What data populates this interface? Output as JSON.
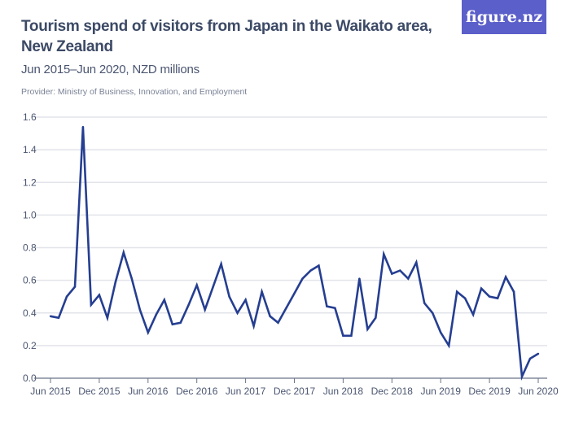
{
  "logo": "figure.nz",
  "chart_data": {
    "type": "line",
    "title": "Tourism spend of visitors from Japan in the Waikato area, New Zealand",
    "subtitle": "Jun 2015–Jun 2020, NZD millions",
    "provider": "Provider: Ministry of Business, Innovation, and Employment",
    "xlabel": "",
    "ylabel": "",
    "ylim": [
      0,
      1.6
    ],
    "yticks": [
      "0.0",
      "0.2",
      "0.4",
      "0.6",
      "0.8",
      "1.0",
      "1.2",
      "1.4",
      "1.6"
    ],
    "xticks": [
      "Jun 2015",
      "Dec 2015",
      "Jun 2016",
      "Dec 2016",
      "Jun 2017",
      "Dec 2017",
      "Jun 2018",
      "Dec 2018",
      "Jun 2019",
      "Dec 2019",
      "Jun 2020"
    ],
    "x_start": "Jun 2015",
    "x_end": "Jun 2020",
    "frequency": "monthly",
    "grid": true,
    "line_color": "#253e91",
    "values": [
      0.38,
      0.37,
      0.5,
      0.56,
      1.54,
      0.45,
      0.51,
      0.37,
      0.59,
      0.77,
      0.61,
      0.42,
      0.28,
      0.39,
      0.48,
      0.33,
      0.34,
      0.45,
      0.57,
      0.42,
      0.56,
      0.7,
      0.5,
      0.4,
      0.48,
      0.32,
      0.53,
      0.38,
      0.34,
      0.43,
      0.52,
      0.61,
      0.66,
      0.69,
      0.44,
      0.43,
      0.26,
      0.26,
      0.61,
      0.3,
      0.37,
      0.76,
      0.64,
      0.66,
      0.61,
      0.71,
      0.46,
      0.4,
      0.28,
      0.2,
      0.53,
      0.49,
      0.39,
      0.55,
      0.5,
      0.49,
      0.62,
      0.53,
      0.01,
      0.12,
      0.15
    ]
  }
}
